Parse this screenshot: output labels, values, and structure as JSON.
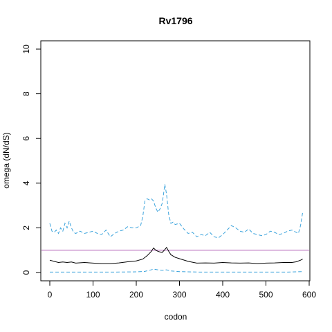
{
  "chart_data": {
    "type": "line",
    "title": "Rv1796",
    "xlabel": "codon",
    "ylabel": "omega (dN/dS)",
    "xlim": [
      0,
      600
    ],
    "ylim": [
      0,
      10
    ],
    "x_ticks": [
      0,
      100,
      200,
      300,
      400,
      500,
      600
    ],
    "y_ticks": [
      0,
      2,
      4,
      6,
      8,
      10
    ],
    "grid": false,
    "reference_line": {
      "y": 1,
      "color": "#b05fb5"
    },
    "series": [
      {
        "role": "upper",
        "color": "#3ba3dc",
        "dash": true,
        "x": [
          0,
          5,
          10,
          15,
          20,
          25,
          30,
          35,
          40,
          45,
          50,
          55,
          60,
          70,
          80,
          90,
          100,
          110,
          120,
          130,
          140,
          150,
          160,
          170,
          180,
          190,
          200,
          210,
          215,
          220,
          225,
          230,
          235,
          240,
          245,
          250,
          255,
          260,
          263,
          266,
          270,
          275,
          280,
          285,
          290,
          300,
          310,
          320,
          330,
          340,
          350,
          360,
          370,
          380,
          390,
          400,
          410,
          420,
          430,
          440,
          450,
          460,
          470,
          480,
          490,
          500,
          510,
          520,
          530,
          540,
          550,
          560,
          570,
          575,
          580,
          585
        ],
        "y": [
          2.2,
          1.85,
          1.8,
          1.9,
          1.75,
          2.0,
          1.85,
          2.2,
          2.0,
          2.3,
          2.0,
          1.8,
          1.75,
          1.85,
          1.75,
          1.8,
          1.85,
          1.75,
          1.7,
          1.9,
          1.6,
          1.75,
          1.85,
          1.9,
          2.05,
          2.0,
          2.0,
          2.1,
          2.5,
          3.2,
          3.3,
          3.25,
          3.3,
          3.2,
          2.9,
          2.7,
          2.85,
          3.1,
          3.5,
          3.95,
          3.5,
          2.6,
          2.2,
          2.25,
          2.15,
          2.2,
          1.95,
          1.75,
          1.8,
          1.6,
          1.7,
          1.65,
          1.8,
          1.6,
          1.55,
          1.7,
          1.9,
          2.1,
          2.0,
          1.85,
          1.8,
          1.95,
          1.75,
          1.7,
          1.65,
          1.7,
          1.85,
          1.8,
          1.7,
          1.75,
          1.85,
          1.9,
          1.8,
          1.75,
          2.1,
          2.7
        ]
      },
      {
        "role": "mean",
        "color": "#000000",
        "dash": false,
        "x": [
          0,
          10,
          20,
          30,
          40,
          50,
          60,
          80,
          100,
          120,
          140,
          160,
          180,
          200,
          215,
          225,
          235,
          240,
          245,
          250,
          255,
          260,
          265,
          270,
          275,
          280,
          290,
          300,
          320,
          340,
          360,
          380,
          400,
          420,
          440,
          460,
          480,
          500,
          520,
          540,
          560,
          570,
          580,
          585
        ],
        "y": [
          0.55,
          0.5,
          0.45,
          0.47,
          0.45,
          0.47,
          0.42,
          0.45,
          0.42,
          0.4,
          0.4,
          0.43,
          0.48,
          0.52,
          0.6,
          0.75,
          0.95,
          1.1,
          1.0,
          0.95,
          0.92,
          0.9,
          1.0,
          1.12,
          0.95,
          0.8,
          0.68,
          0.62,
          0.5,
          0.42,
          0.43,
          0.42,
          0.45,
          0.43,
          0.42,
          0.43,
          0.4,
          0.42,
          0.43,
          0.45,
          0.45,
          0.48,
          0.55,
          0.6
        ]
      },
      {
        "role": "lower",
        "color": "#3ba3dc",
        "dash": true,
        "x": [
          0,
          50,
          100,
          150,
          200,
          220,
          230,
          240,
          250,
          260,
          270,
          280,
          300,
          350,
          400,
          450,
          500,
          550,
          585
        ],
        "y": [
          0.02,
          0.02,
          0.02,
          0.02,
          0.03,
          0.05,
          0.1,
          0.15,
          0.12,
          0.1,
          0.12,
          0.07,
          0.04,
          0.02,
          0.02,
          0.02,
          0.02,
          0.02,
          0.04
        ]
      }
    ]
  }
}
